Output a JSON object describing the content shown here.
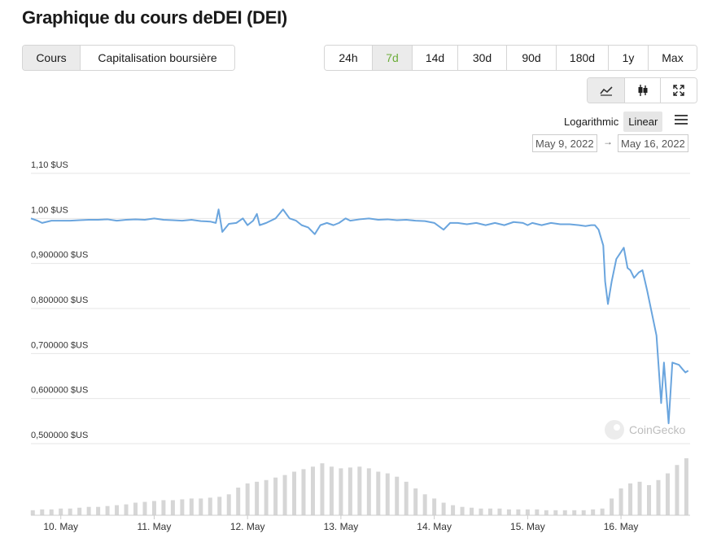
{
  "header": {
    "title": "Graphique du cours deDEI (DEI)"
  },
  "tabs": [
    "Cours",
    "Capitalisation boursière"
  ],
  "ranges": [
    "24h",
    "7d",
    "14d",
    "30d",
    "90d",
    "180d",
    "1y",
    "Max"
  ],
  "scale_options": [
    "Logarithmic",
    "Linear"
  ],
  "date_range": {
    "from": "May 9, 2022",
    "to": "May 16, 2022"
  },
  "watermark": "CoinGecko",
  "chart_data": {
    "type": "line",
    "x": [
      9.68,
      9.75,
      9.8,
      9.9,
      10.0,
      10.1,
      10.2,
      10.3,
      10.4,
      10.5,
      10.6,
      10.7,
      10.8,
      10.9,
      11.0,
      11.1,
      11.2,
      11.3,
      11.4,
      11.5,
      11.6,
      11.66,
      11.69,
      11.73,
      11.8,
      11.88,
      11.95,
      12.0,
      12.06,
      12.1,
      12.13,
      12.2,
      12.3,
      12.38,
      12.45,
      12.52,
      12.58,
      12.65,
      12.72,
      12.78,
      12.85,
      12.92,
      12.98,
      13.05,
      13.1,
      13.2,
      13.3,
      13.4,
      13.5,
      13.6,
      13.7,
      13.8,
      13.9,
      14.0,
      14.1,
      14.17,
      14.25,
      14.35,
      14.45,
      14.55,
      14.65,
      14.75,
      14.85,
      14.95,
      15.0,
      15.05,
      15.15,
      15.25,
      15.35,
      15.45,
      15.55,
      15.62,
      15.68,
      15.72,
      15.76,
      15.81,
      15.83,
      15.86,
      15.9,
      15.95,
      16.03,
      16.07,
      16.1,
      16.14,
      16.19,
      16.23,
      16.28,
      16.34,
      16.38,
      16.43,
      16.46,
      16.51,
      16.55,
      16.62,
      16.66,
      16.69,
      16.72
    ],
    "values": [
      1.0,
      0.995,
      0.99,
      0.995,
      0.995,
      0.995,
      0.996,
      0.997,
      0.997,
      0.998,
      0.995,
      0.997,
      0.998,
      0.997,
      1.0,
      0.997,
      0.996,
      0.995,
      0.997,
      0.994,
      0.993,
      0.99,
      1.02,
      0.97,
      0.988,
      0.99,
      1.0,
      0.985,
      0.995,
      1.01,
      0.985,
      0.99,
      1.0,
      1.02,
      1.0,
      0.995,
      0.985,
      0.98,
      0.965,
      0.985,
      0.99,
      0.985,
      0.99,
      1.0,
      0.995,
      0.998,
      1.0,
      0.997,
      0.998,
      0.996,
      0.997,
      0.995,
      0.994,
      0.99,
      0.975,
      0.99,
      0.99,
      0.987,
      0.99,
      0.985,
      0.99,
      0.985,
      0.992,
      0.99,
      0.985,
      0.99,
      0.985,
      0.99,
      0.987,
      0.987,
      0.985,
      0.983,
      0.985,
      0.985,
      0.975,
      0.94,
      0.86,
      0.81,
      0.86,
      0.91,
      0.935,
      0.89,
      0.885,
      0.868,
      0.88,
      0.885,
      0.84,
      0.78,
      0.74,
      0.59,
      0.68,
      0.545,
      0.68,
      0.675,
      0.665,
      0.658,
      0.662
    ],
    "color": "#6aa5de",
    "xlim": [
      9.68,
      16.74
    ],
    "ylim": [
      0.5,
      1.1
    ],
    "xticks": [
      {
        "value": 10,
        "label": "10. May"
      },
      {
        "value": 11,
        "label": "11. May"
      },
      {
        "value": 12,
        "label": "12. May"
      },
      {
        "value": 13,
        "label": "13. May"
      },
      {
        "value": 14,
        "label": "14. May"
      },
      {
        "value": 15,
        "label": "15. May"
      },
      {
        "value": 16,
        "label": "16. May"
      }
    ],
    "yticks": [
      {
        "value": 1.1,
        "label": "1,10 $US"
      },
      {
        "value": 1.0,
        "label": "1,00 $US"
      },
      {
        "value": 0.9,
        "label": "0,900000 $US"
      },
      {
        "value": 0.8,
        "label": "0,800000 $US"
      },
      {
        "value": 0.7,
        "label": "0,700000 $US"
      },
      {
        "value": 0.6,
        "label": "0,600000 $US"
      },
      {
        "value": 0.5,
        "label": "0,500000 $US"
      }
    ],
    "grid": true,
    "volume": {
      "x": [
        9.7,
        9.8,
        9.9,
        10.0,
        10.1,
        10.2,
        10.3,
        10.4,
        10.5,
        10.6,
        10.7,
        10.8,
        10.9,
        11.0,
        11.1,
        11.2,
        11.3,
        11.4,
        11.5,
        11.6,
        11.7,
        11.8,
        11.9,
        12.0,
        12.1,
        12.2,
        12.3,
        12.4,
        12.5,
        12.6,
        12.7,
        12.8,
        12.9,
        13.0,
        13.1,
        13.2,
        13.3,
        13.4,
        13.5,
        13.6,
        13.7,
        13.8,
        13.9,
        14.0,
        14.1,
        14.2,
        14.3,
        14.4,
        14.5,
        14.6,
        14.7,
        14.8,
        14.9,
        15.0,
        15.1,
        15.2,
        15.3,
        15.4,
        15.5,
        15.6,
        15.7,
        15.8,
        15.9,
        16.0,
        16.1,
        16.2,
        16.3,
        16.4,
        16.5,
        16.6,
        16.7
      ],
      "values": [
        6,
        7,
        7,
        8,
        8,
        9,
        10,
        10,
        11,
        12,
        13,
        15,
        16,
        17,
        18,
        18,
        19,
        20,
        20,
        21,
        22,
        25,
        33,
        38,
        40,
        42,
        45,
        48,
        52,
        55,
        58,
        62,
        58,
        56,
        57,
        58,
        56,
        52,
        50,
        46,
        40,
        32,
        25,
        20,
        15,
        12,
        10,
        9,
        8,
        8,
        8,
        7,
        7,
        7,
        7,
        6,
        6,
        6,
        6,
        6,
        7,
        8,
        20,
        32,
        38,
        40,
        36,
        42,
        50,
        60,
        68
      ],
      "color": "#d6d6d6"
    }
  }
}
